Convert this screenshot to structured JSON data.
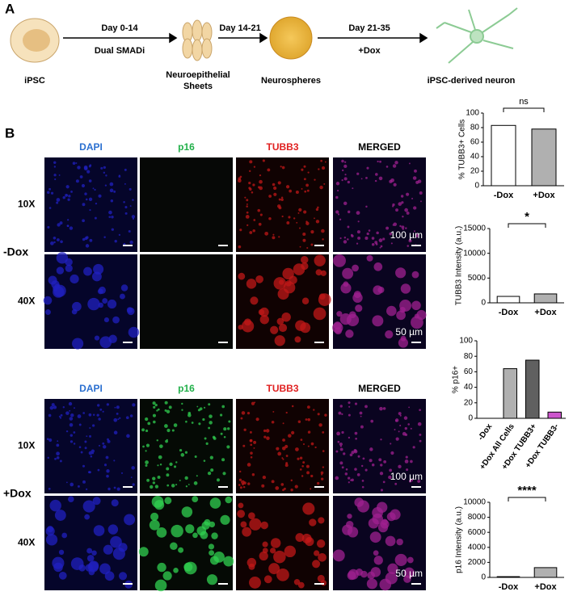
{
  "panel_a": {
    "label": "A",
    "steps": [
      "iPSC",
      "Neuroepithelial Sheets",
      "Neurospheres",
      "iPSC-derived neuron"
    ],
    "arrows": [
      {
        "top": "Day 0-14",
        "bottom": "Dual SMADi"
      },
      {
        "top": "Day 14-21"
      },
      {
        "top": "Day 21-35",
        "bottom": "+Dox"
      }
    ]
  },
  "panel_b": {
    "label": "B",
    "columns": [
      "DAPI",
      "p16",
      "TUBB3",
      "MERGED"
    ],
    "groups": [
      {
        "condition": "-Dox",
        "rows": [
          "10X",
          "40X"
        ],
        "scale_bars": [
          "100 µm",
          "50 µm"
        ]
      },
      {
        "condition": "+Dox",
        "rows": [
          "10X",
          "40X"
        ],
        "scale_bars": [
          "100 µm",
          "50 µm"
        ]
      }
    ]
  },
  "chart_data": [
    {
      "type": "bar",
      "y_label": "% TUBB3+ Cells",
      "categories": [
        "-Dox",
        "+Dox"
      ],
      "values": [
        83,
        78
      ],
      "colors": [
        "#ffffff",
        "#b0b0b0"
      ],
      "ylim": [
        0,
        100
      ],
      "yticks": [
        0,
        20,
        40,
        60,
        80,
        100
      ],
      "annotation": "ns"
    },
    {
      "type": "bar",
      "y_label": "TUBB3 Intensity (a.u.)",
      "categories": [
        "-Dox",
        "+Dox"
      ],
      "values": [
        1300,
        1800
      ],
      "colors": [
        "#ffffff",
        "#b0b0b0"
      ],
      "ylim": [
        0,
        15000
      ],
      "yticks": [
        0,
        5000,
        10000,
        15000
      ],
      "annotation": "*"
    },
    {
      "type": "bar",
      "y_label": "% p16+",
      "categories": [
        "-Dox",
        "+Dox All Cells",
        "+Dox TUBB3+",
        "+Dox TUBB3-"
      ],
      "values": [
        0,
        64,
        75,
        8
      ],
      "colors": [
        "#ffffff",
        "#b0b0b0",
        "#606060",
        "#cc55cc"
      ],
      "ylim": [
        0,
        100
      ],
      "yticks": [
        0,
        20,
        40,
        60,
        80,
        100
      ]
    },
    {
      "type": "bar",
      "y_label": "p16 Intensity (a.u.)",
      "categories": [
        "-Dox",
        "+Dox"
      ],
      "values": [
        100,
        1300
      ],
      "colors": [
        "#ffffff",
        "#b0b0b0"
      ],
      "ylim": [
        0,
        10000
      ],
      "yticks": [
        0,
        2000,
        4000,
        6000,
        8000,
        10000
      ],
      "annotation": "****"
    }
  ]
}
